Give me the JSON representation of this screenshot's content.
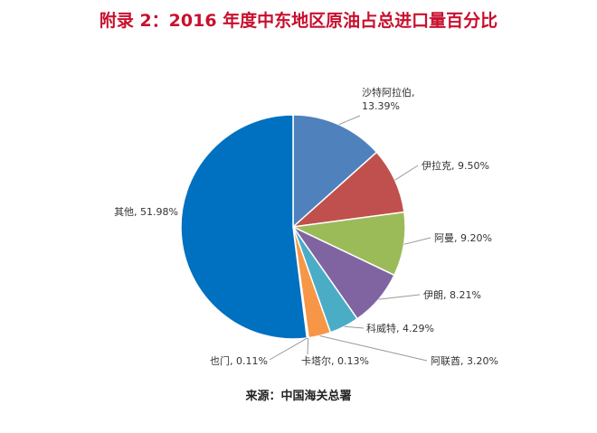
{
  "title": "附录 2：2016 年度中东地区原油占总进口量百分比",
  "source": "来源：中国海关总署",
  "chart_data": {
    "type": "pie",
    "title": "附录 2：2016 年度中东地区原油占总进口量百分比",
    "unit": "%",
    "slices": [
      {
        "label": "沙特阿拉伯",
        "value": 13.39,
        "value_text": "13.39%",
        "color": "#4f81bd"
      },
      {
        "label": "伊拉克",
        "value": 9.5,
        "value_text": "9.50%",
        "color": "#c0504d"
      },
      {
        "label": "阿曼",
        "value": 9.2,
        "value_text": "9.20%",
        "color": "#9bbb59"
      },
      {
        "label": "伊朗",
        "value": 8.21,
        "value_text": "8.21%",
        "color": "#8064a2"
      },
      {
        "label": "科威特",
        "value": 4.29,
        "value_text": "4.29%",
        "color": "#4bacc6"
      },
      {
        "label": "阿联酋",
        "value": 3.2,
        "value_text": "3.20%",
        "color": "#f79646"
      },
      {
        "label": "卡塔尔",
        "value": 0.13,
        "value_text": "0.13%",
        "color": "#2c4d75"
      },
      {
        "label": "也门",
        "value": 0.11,
        "value_text": "0.11%",
        "color": "#772c2a"
      },
      {
        "label": "其他",
        "value": 51.98,
        "value_text": "51.98%",
        "color": "#0070c0"
      }
    ]
  }
}
